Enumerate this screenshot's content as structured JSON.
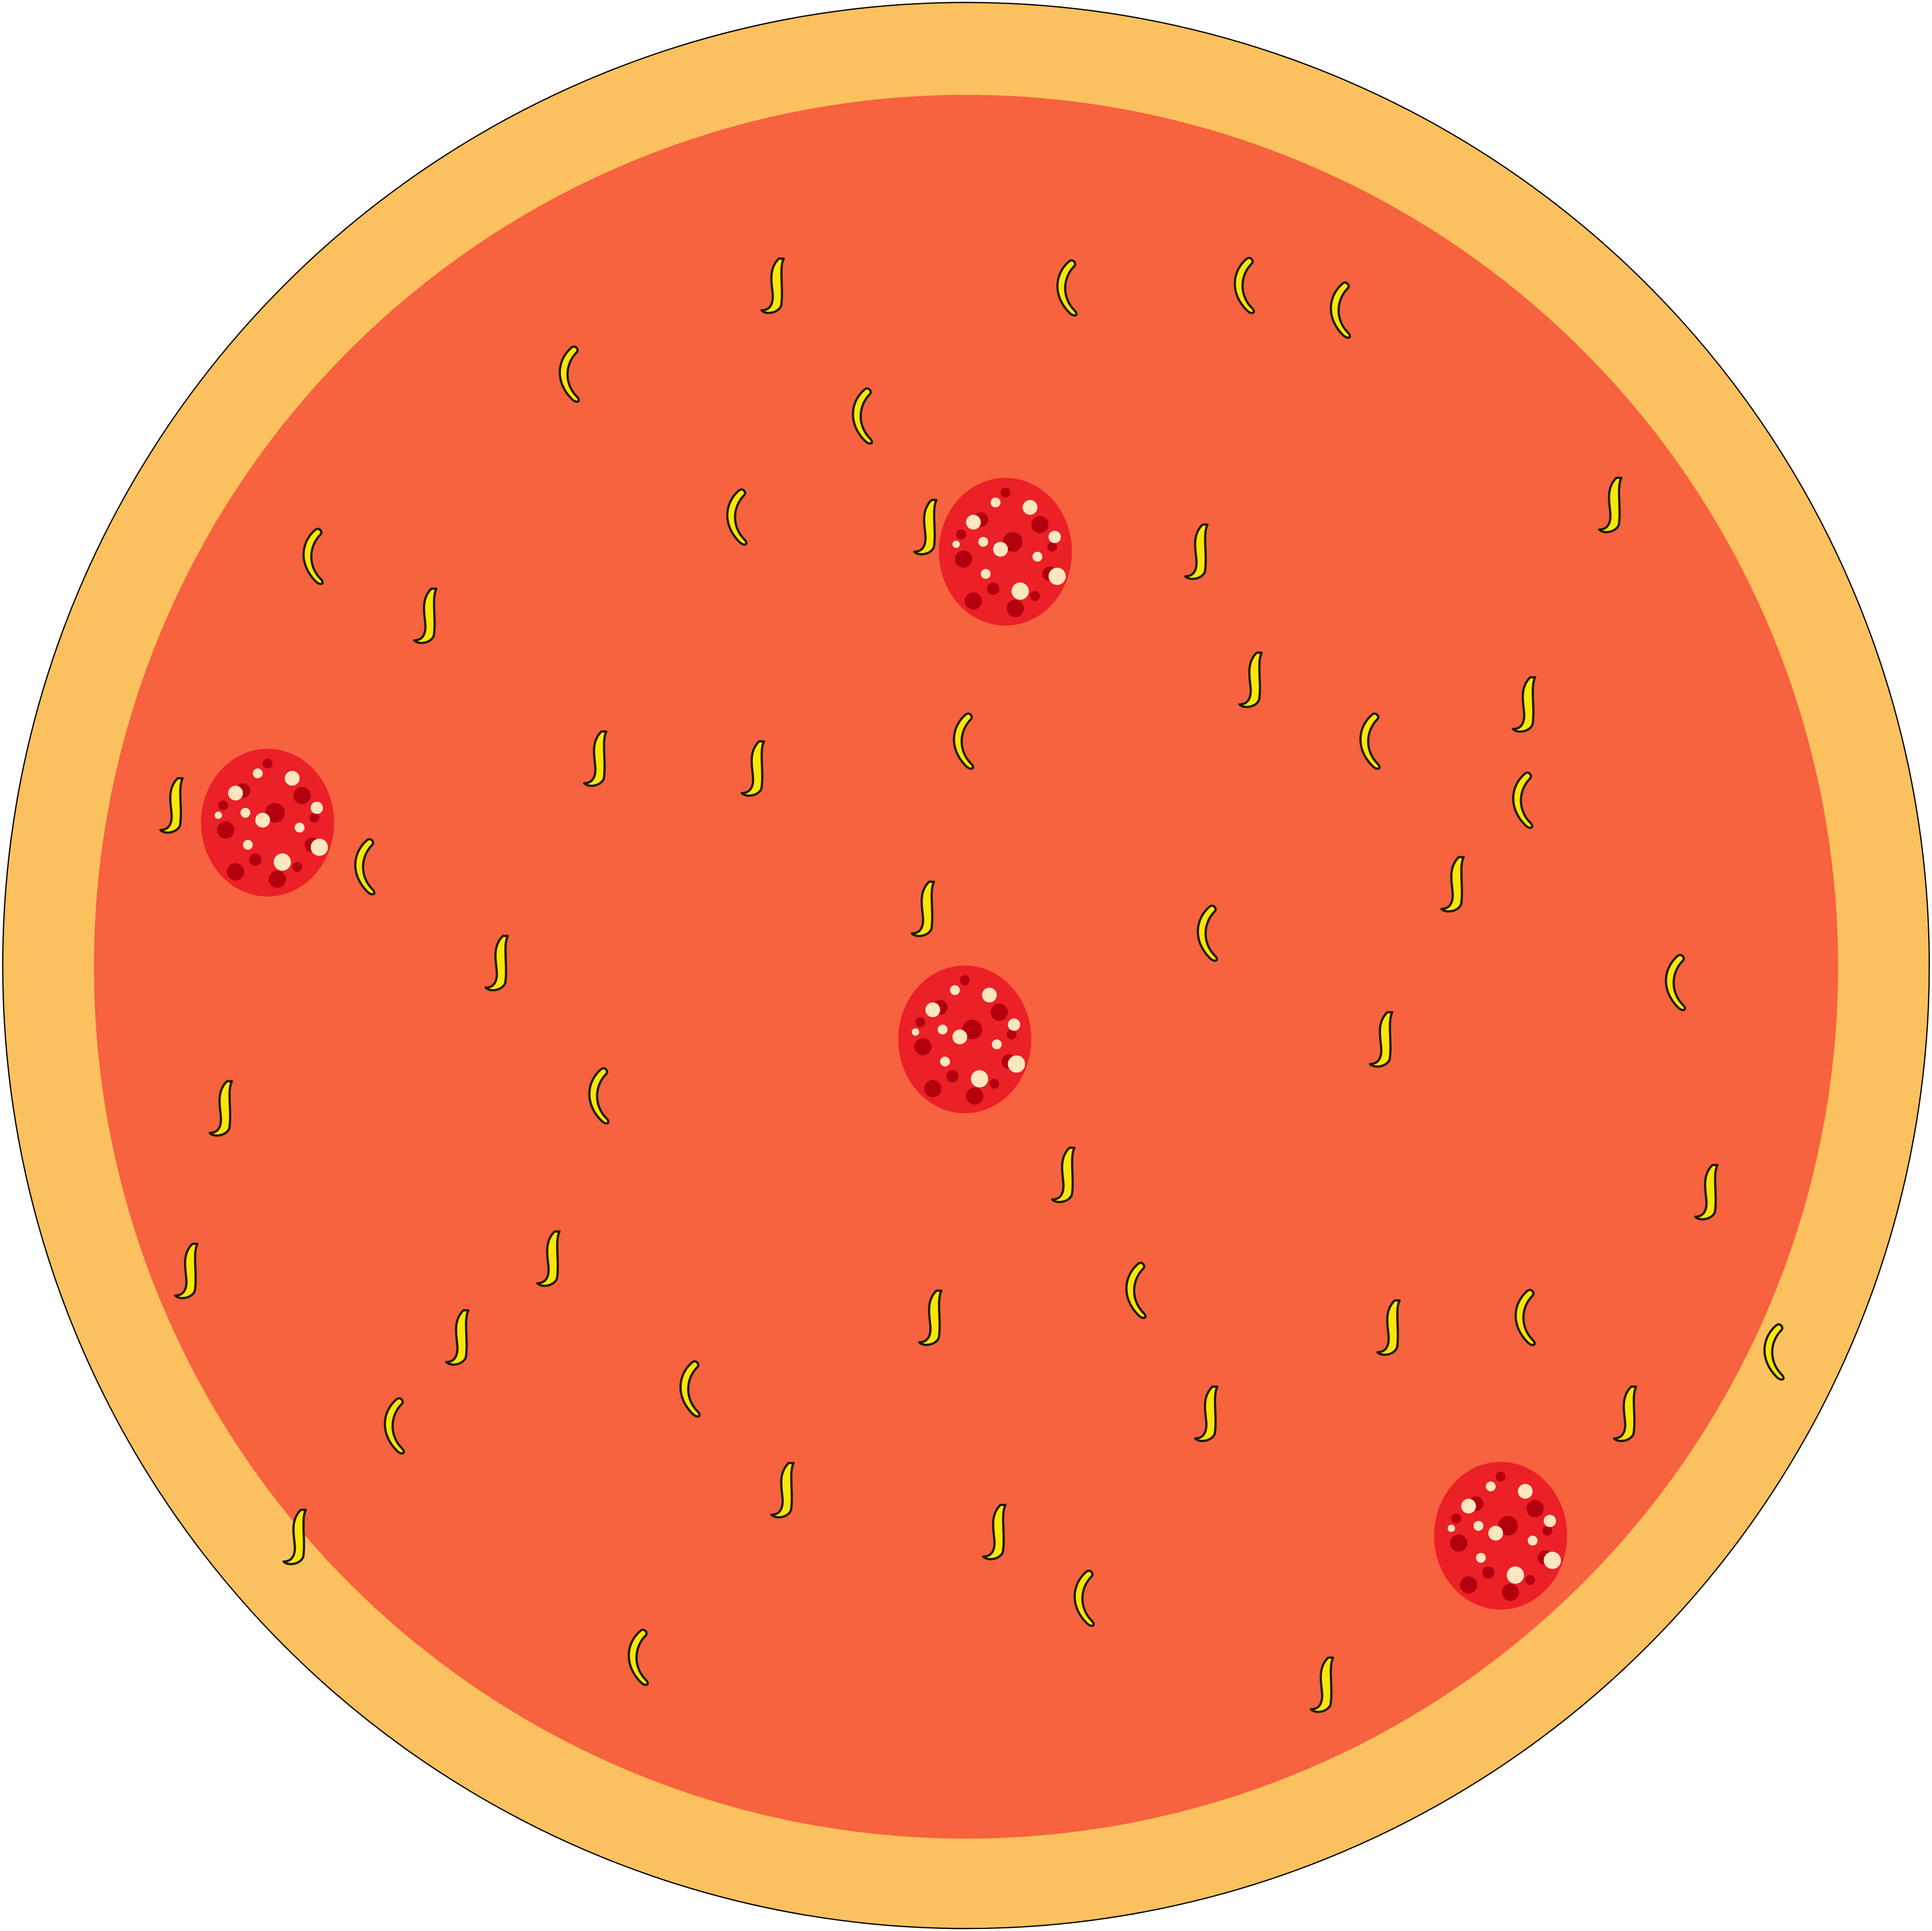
{
  "scene": {
    "subject": "pizza",
    "toppings": [
      "cheese",
      "pepperoni"
    ]
  },
  "colors": {
    "background": "#ffffff",
    "crust": "#fbc15e",
    "sauce": "#f7623f",
    "outline": "#000000",
    "cheese": "#f8e609",
    "cheese_outline": "#1a1a00",
    "pepperoni": "#ec2027",
    "pepperoni_dark": "#b3000f",
    "pepperoni_fat": "#fde7c0"
  },
  "pepperoni_count": 4,
  "cheese_count": 49
}
